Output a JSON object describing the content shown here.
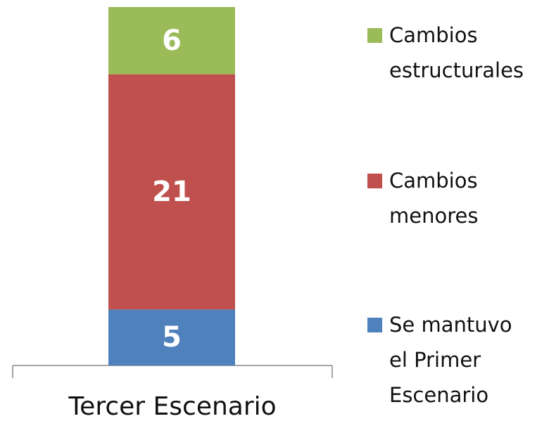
{
  "chart_data": {
    "type": "bar",
    "stacked": true,
    "categories": [
      "Tercer Escenario"
    ],
    "series": [
      {
        "name": "Se mantuvo el Primer Escenario",
        "color": "#4f81bd",
        "values": [
          5
        ]
      },
      {
        "name": "Cambios menores",
        "color": "#c0504d",
        "values": [
          21
        ]
      },
      {
        "name": "Cambios estructurales",
        "color": "#9bbb59",
        "values": [
          6
        ]
      }
    ],
    "legend": "right"
  }
}
